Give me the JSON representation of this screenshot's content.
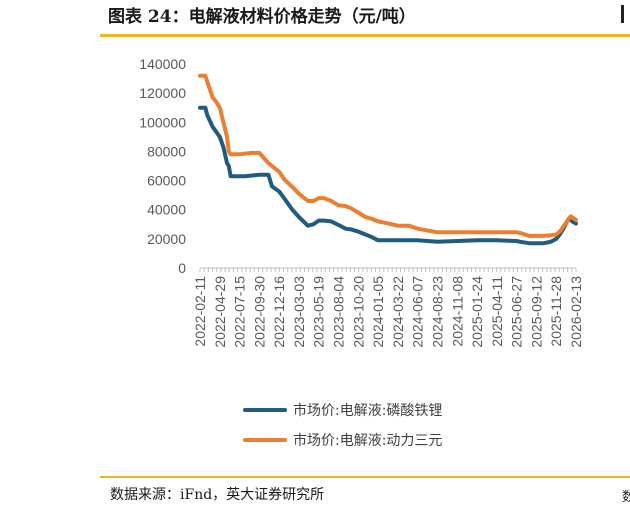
{
  "header": {
    "title": "图表 24：电解液材料价格走势（元/吨）",
    "source": "数据来源：iFnd，英大证券研究所",
    "source_edge": "数"
  },
  "colors": {
    "accent": "#f0b323",
    "lfp": "#1f5c80",
    "ncm": "#ed7d31"
  },
  "chart_data": {
    "type": "line",
    "title": "",
    "xlabel": "",
    "ylabel": "",
    "ylim": [
      0,
      140000
    ],
    "yticks": [
      0,
      20000,
      40000,
      60000,
      80000,
      100000,
      120000,
      140000
    ],
    "ytick_labels": [
      "0",
      "20000",
      "40000",
      "60000",
      "80000",
      "100000",
      "120000",
      "140000"
    ],
    "xtick_labels": [
      "2022-02-11",
      "2022-04-29",
      "2022-07-15",
      "2022-09-30",
      "2022-12-16",
      "2023-03-03",
      "2023-05-19",
      "2023-08-04",
      "2023-10-20",
      "2024-01-05",
      "2024-03-22",
      "2024-06-07",
      "2024-08-23",
      "2024-11-08",
      "2025-01-24",
      "2025-04-11",
      "2025-06-27",
      "2025-09-12",
      "2025-11-28",
      "2026-02-13"
    ],
    "legend_position": "bottom",
    "grid": false,
    "series": [
      {
        "name": "市场价:电解液:磷酸铁锂",
        "color": "#1f5c80",
        "x": [
          "2022-02-11",
          "2022-03-04",
          "2022-03-11",
          "2022-04-01",
          "2022-04-29",
          "2022-05-13",
          "2022-05-27",
          "2022-06-03",
          "2022-06-10",
          "2022-07-01",
          "2022-07-15",
          "2022-08-05",
          "2022-09-02",
          "2022-09-30",
          "2022-11-04",
          "2022-11-18",
          "2022-12-16",
          "2023-01-06",
          "2023-02-03",
          "2023-03-03",
          "2023-04-07",
          "2023-04-28",
          "2023-05-19",
          "2023-06-09",
          "2023-07-07",
          "2023-08-04",
          "2023-09-01",
          "2023-09-22",
          "2023-10-20",
          "2023-11-17",
          "2023-12-08",
          "2024-01-05",
          "2024-02-02",
          "2024-03-22",
          "2024-05-03",
          "2024-06-07",
          "2024-08-23",
          "2024-11-08",
          "2025-01-24",
          "2025-04-11",
          "2025-06-27",
          "2025-07-11",
          "2025-08-15",
          "2025-09-12",
          "2025-10-10",
          "2025-10-24",
          "2025-11-07",
          "2025-11-28",
          "2025-12-12",
          "2025-12-26",
          "2026-01-09",
          "2026-01-16",
          "2026-01-30",
          "2026-02-13"
        ],
        "y": [
          110000,
          110000,
          105000,
          97000,
          90000,
          83000,
          72000,
          70000,
          63000,
          63000,
          63000,
          63000,
          63500,
          64000,
          64000,
          56000,
          52500,
          47500,
          40500,
          35000,
          29000,
          30000,
          32500,
          32500,
          32000,
          29500,
          27000,
          26500,
          25000,
          23000,
          21500,
          19000,
          19000,
          19000,
          19000,
          19000,
          18000,
          18500,
          19000,
          19000,
          18500,
          18000,
          17000,
          17000,
          17000,
          17500,
          18000,
          20000,
          23000,
          27000,
          32000,
          34000,
          32000,
          30500
        ]
      },
      {
        "name": "市场价:电解液:动力三元",
        "color": "#ed7d31",
        "x": [
          "2022-02-11",
          "2022-03-04",
          "2022-03-11",
          "2022-04-01",
          "2022-04-15",
          "2022-04-29",
          "2022-05-13",
          "2022-05-27",
          "2022-06-03",
          "2022-06-10",
          "2022-07-01",
          "2022-07-15",
          "2022-08-05",
          "2022-09-02",
          "2022-09-30",
          "2022-11-04",
          "2022-11-18",
          "2022-12-16",
          "2023-01-06",
          "2023-02-03",
          "2023-03-03",
          "2023-04-07",
          "2023-04-28",
          "2023-05-19",
          "2023-06-09",
          "2023-07-07",
          "2023-08-04",
          "2023-09-01",
          "2023-09-22",
          "2023-10-20",
          "2023-11-17",
          "2023-12-08",
          "2024-01-05",
          "2024-02-02",
          "2024-03-22",
          "2024-05-03",
          "2024-06-07",
          "2024-08-23",
          "2024-11-08",
          "2025-01-24",
          "2025-04-11",
          "2025-06-27",
          "2025-07-11",
          "2025-08-15",
          "2025-09-12",
          "2025-10-10",
          "2025-11-07",
          "2025-11-28",
          "2025-12-12",
          "2025-12-26",
          "2026-01-09",
          "2026-01-23",
          "2026-02-13"
        ],
        "y": [
          132000,
          132000,
          128000,
          117000,
          114000,
          110000,
          100000,
          90000,
          80000,
          78000,
          78000,
          78000,
          78500,
          79000,
          79000,
          72000,
          70000,
          66000,
          60500,
          56000,
          51000,
          46000,
          46000,
          48000,
          48000,
          46000,
          43000,
          42500,
          41000,
          38000,
          35000,
          34000,
          32000,
          31000,
          29000,
          29000,
          27000,
          24500,
          24500,
          24500,
          24500,
          24500,
          24000,
          22000,
          22000,
          22000,
          22500,
          23000,
          25000,
          28500,
          32000,
          35500,
          33000
        ]
      }
    ]
  }
}
